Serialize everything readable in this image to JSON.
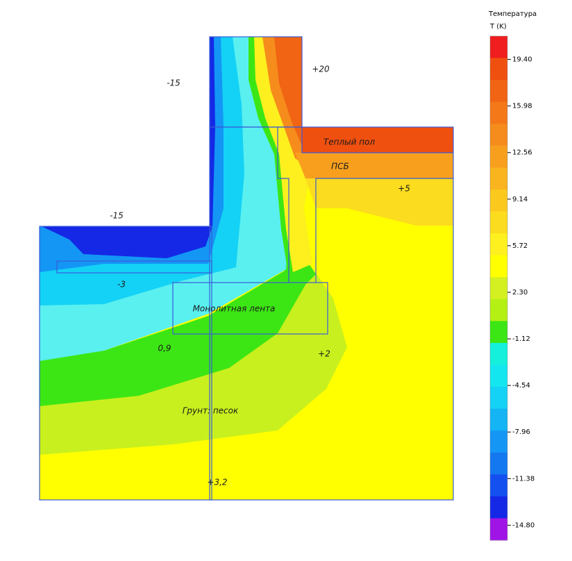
{
  "chart_data": {
    "type": "contour",
    "colorbar": {
      "title": "Температура",
      "label": "T (K)",
      "lim": [
        -15.9,
        21.11
      ],
      "ticks": [
        {
          "value": 19.4,
          "label": "19.40"
        },
        15.98,
        12.56,
        9.14,
        5.72,
        {
          "value": 2.3,
          "label": "2.30"
        },
        -1.12,
        -4.54,
        -7.96,
        -11.38,
        {
          "value": -14.8,
          "label": "-14.80"
        }
      ],
      "colors": [
        "#f01e1e",
        "#f0500f",
        "#f06414",
        "#f47818",
        "#f68c1c",
        "#f8a01e",
        "#fab41e",
        "#fbc81e",
        "#fcdc1e",
        "#fdf01e",
        "#ffff00",
        "#d4f020",
        "#b4f014",
        "#3ce614",
        "#14f0dc",
        "#14e6f0",
        "#14d2f5",
        "#14b4f5",
        "#1496f5",
        "#1478f0",
        "#1450f0",
        "#1428e6",
        "#a014e6"
      ]
    },
    "annotations": [
      "-15",
      "+20",
      "Теплый пол",
      "ПСБ",
      "-15",
      "+5",
      "-3",
      "Монолитная лента",
      "0,9",
      "+2",
      "Грунт: песок",
      "+3,2"
    ]
  }
}
